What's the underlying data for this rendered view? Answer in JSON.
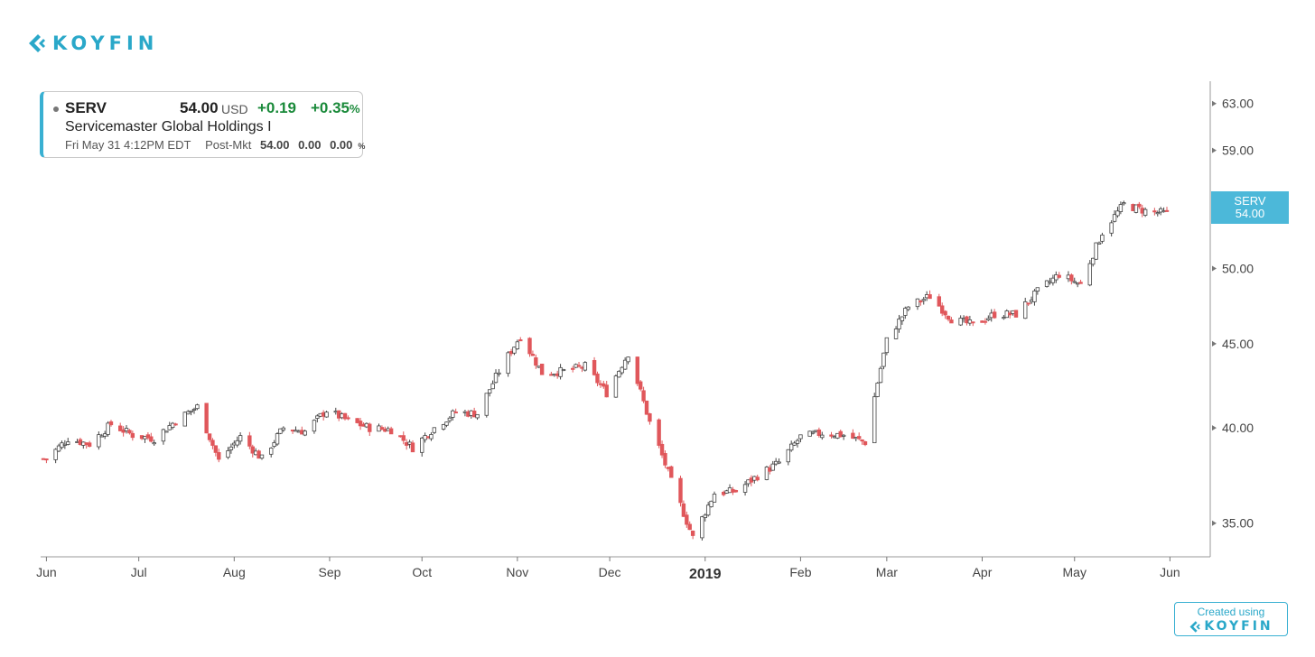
{
  "brand": {
    "name": "KOYFIN",
    "color": "#2aa8c9",
    "created_using": "Created using"
  },
  "quote": {
    "ticker": "SERV",
    "price": "54.00",
    "currency": "USD",
    "change": "+0.19",
    "change_pct": "+0.35",
    "pct_symbol": "%",
    "name": "Servicemaster Global Holdings I",
    "timestamp": "Fri May 31 4:12PM EDT",
    "post_market_label": "Post-Mkt",
    "post_market_price": "54.00",
    "post_market_change": "0.00",
    "post_market_pct": "0.00",
    "up_color": "#1a8a3a"
  },
  "chart_data": {
    "type": "candlestick",
    "series_name": "SERV",
    "last_value": 54.0,
    "last_label": "54.00",
    "y_scale": "log",
    "ylim": [
      33.6,
      65.0
    ],
    "y_ticks": [
      "35.00",
      "40.00",
      "45.00",
      "50.00",
      "55.00",
      "59.00",
      "63.00"
    ],
    "x_ticks": [
      "Jun",
      "Jul",
      "Aug",
      "Sep",
      "Oct",
      "Nov",
      "Dec",
      "2019",
      "Feb",
      "Mar",
      "Apr",
      "May",
      "Jun"
    ],
    "up_color": "#ffffff",
    "down_color": "#e0575b",
    "weekly_close": [
      [
        "2018-06-01",
        38.3
      ],
      [
        "2018-06-08",
        39.4
      ],
      [
        "2018-06-15",
        39.1
      ],
      [
        "2018-06-22",
        40.2
      ],
      [
        "2018-06-29",
        39.6
      ],
      [
        "2018-07-06",
        39.4
      ],
      [
        "2018-07-13",
        40.4
      ],
      [
        "2018-07-20",
        41.2
      ],
      [
        "2018-07-27",
        38.2
      ],
      [
        "2018-08-03",
        39.5
      ],
      [
        "2018-08-10",
        38.3
      ],
      [
        "2018-08-17",
        40.0
      ],
      [
        "2018-08-24",
        39.8
      ],
      [
        "2018-08-31",
        41.0
      ],
      [
        "2018-09-07",
        40.4
      ],
      [
        "2018-09-14",
        40.0
      ],
      [
        "2018-09-21",
        39.9
      ],
      [
        "2018-09-28",
        38.9
      ],
      [
        "2018-10-05",
        40.0
      ],
      [
        "2018-10-12",
        40.9
      ],
      [
        "2018-10-19",
        40.8
      ],
      [
        "2018-10-26",
        43.3
      ],
      [
        "2018-11-02",
        45.5
      ],
      [
        "2018-11-09",
        43.2
      ],
      [
        "2018-11-16",
        43.3
      ],
      [
        "2018-11-23",
        43.6
      ],
      [
        "2018-11-30",
        42.0
      ],
      [
        "2018-12-07",
        44.4
      ],
      [
        "2018-12-14",
        40.3
      ],
      [
        "2018-12-21",
        37.1
      ],
      [
        "2018-12-28",
        34.3
      ],
      [
        "2019-01-04",
        36.5
      ],
      [
        "2019-01-11",
        36.6
      ],
      [
        "2019-01-18",
        37.4
      ],
      [
        "2019-01-25",
        38.1
      ],
      [
        "2019-02-01",
        39.5
      ],
      [
        "2019-02-08",
        39.7
      ],
      [
        "2019-02-15",
        39.6
      ],
      [
        "2019-02-22",
        39.2
      ],
      [
        "2019-03-01",
        45.2
      ],
      [
        "2019-03-08",
        47.4
      ],
      [
        "2019-03-15",
        48.1
      ],
      [
        "2019-03-22",
        46.6
      ],
      [
        "2019-03-29",
        46.2
      ],
      [
        "2019-04-05",
        46.9
      ],
      [
        "2019-04-12",
        46.9
      ],
      [
        "2019-04-19",
        48.4
      ],
      [
        "2019-04-26",
        49.6
      ],
      [
        "2019-05-03",
        48.9
      ],
      [
        "2019-05-10",
        52.6
      ],
      [
        "2019-05-17",
        54.7
      ],
      [
        "2019-05-24",
        54.2
      ],
      [
        "2019-05-31",
        54.0
      ]
    ]
  }
}
